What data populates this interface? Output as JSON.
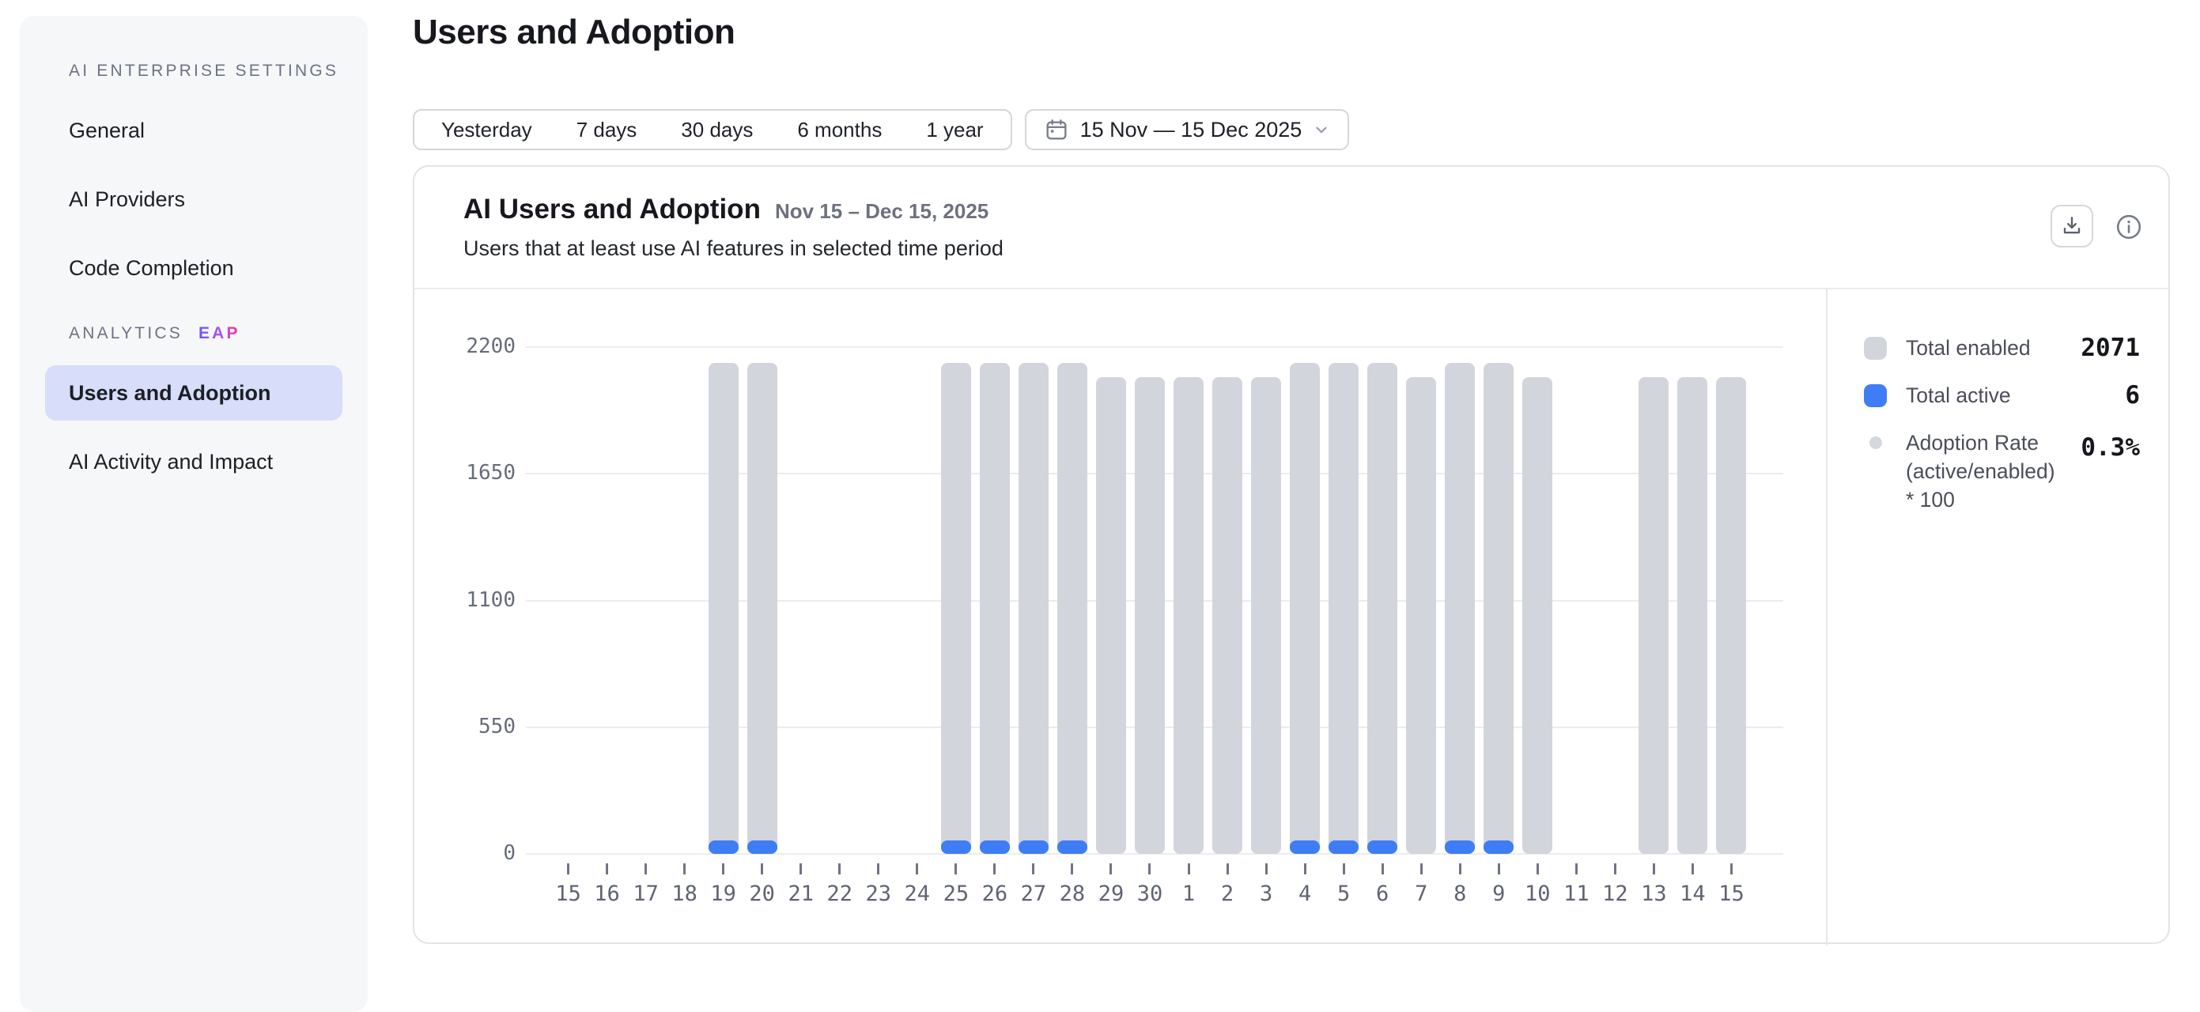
{
  "sidebar": {
    "section1_label": "AI ENTERPRISE SETTINGS",
    "items": [
      {
        "label": "General",
        "selected": false
      },
      {
        "label": "AI Providers",
        "selected": false
      },
      {
        "label": "Code Completion",
        "selected": false
      }
    ],
    "section2_label": "ANALYTICS",
    "section2_badge": "EAP",
    "analytics_items": [
      {
        "label": "Users and Adoption",
        "selected": true
      },
      {
        "label": "AI Activity and Impact",
        "selected": false
      }
    ]
  },
  "header": {
    "title": "Users and Adoption"
  },
  "time_range": {
    "presets": [
      "Yesterday",
      "7 days",
      "30 days",
      "6 months",
      "1 year"
    ],
    "custom_range": "15 Nov — 15 Dec 2025"
  },
  "card": {
    "title": "AI Users and Adoption",
    "date_range": "Nov 15 – Dec 15, 2025",
    "subtitle": "Users that at least use AI features in selected time period"
  },
  "legend": {
    "items": [
      {
        "swatch": "square",
        "color": "#d2d5dc",
        "label": "Total enabled",
        "value": "2071"
      },
      {
        "swatch": "square",
        "color": "#3e7df6",
        "label": "Total active",
        "value": "6"
      },
      {
        "swatch": "dot",
        "color": "#d4d7de",
        "label": "Adoption Rate (active/enabled) * 100",
        "value": "0.3%"
      }
    ]
  },
  "chart_data": {
    "type": "bar",
    "title": "AI Users and Adoption",
    "subtitle": "Users that at least use AI features in selected time period",
    "date_range": "Nov 15 – Dec 15, 2025",
    "categories": [
      "15",
      "16",
      "17",
      "18",
      "19",
      "20",
      "21",
      "22",
      "23",
      "24",
      "25",
      "26",
      "27",
      "28",
      "29",
      "30",
      "1",
      "2",
      "3",
      "4",
      "5",
      "6",
      "7",
      "8",
      "9",
      "10",
      "11",
      "12",
      "13",
      "14",
      "15"
    ],
    "series": [
      {
        "name": "Total enabled",
        "color": "#d2d5dc",
        "values": [
          0,
          0,
          0,
          0,
          2130,
          2130,
          0,
          0,
          0,
          0,
          2130,
          2130,
          2130,
          2130,
          2071,
          2071,
          2071,
          2071,
          2071,
          2130,
          2130,
          2130,
          2071,
          2130,
          2130,
          2071,
          0,
          0,
          2071,
          2071,
          2071
        ]
      },
      {
        "name": "Total active",
        "color": "#3e7df6",
        "values": [
          0,
          0,
          0,
          0,
          6,
          6,
          0,
          0,
          0,
          0,
          6,
          6,
          6,
          6,
          0,
          0,
          0,
          0,
          0,
          6,
          6,
          6,
          0,
          6,
          6,
          0,
          0,
          0,
          0,
          0,
          0
        ]
      }
    ],
    "yticks": [
      0,
      550,
      1100,
      1650,
      2200
    ],
    "ylim": [
      0,
      2200
    ],
    "grid": true,
    "legend_position": "right",
    "totals": {
      "enabled": 2071,
      "active": 6,
      "adoption_rate": "0.3%"
    },
    "render_note": "Total active segments are drawn as a small fixed-height cap at the bottom of each enabled bar"
  }
}
